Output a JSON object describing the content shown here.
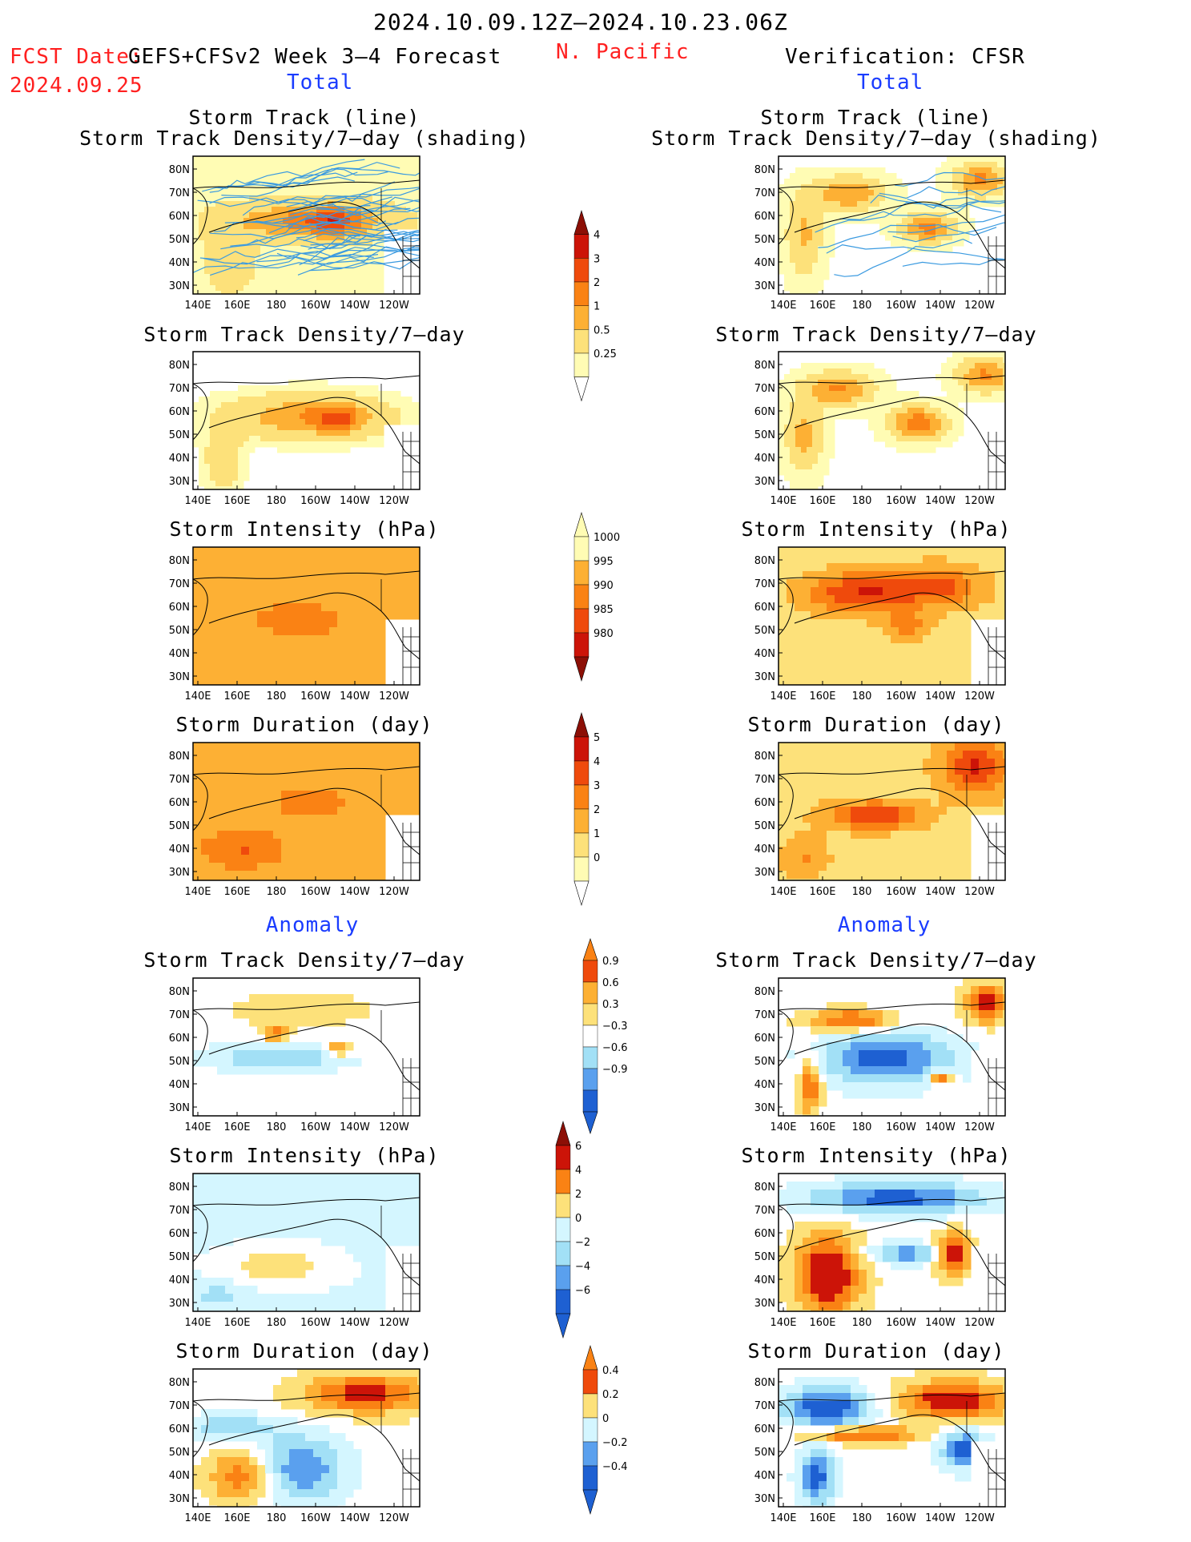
{
  "header": {
    "date_range": "2024.10.09.12Z–2024.10.23.06Z",
    "fcst_label": "FCST Date:",
    "fcst_model": "GEFS+CFSv2 Week 3–4 Forecast",
    "fcst_date": "2024.09.25",
    "region": "N. Pacific",
    "verification": "Verification: CFSR"
  },
  "sections": {
    "total": "Total",
    "anomaly": "Anomaly"
  },
  "panel_titles": {
    "track_line": "Storm Track (line)",
    "track_shading": "Storm Track Density/7–day (shading)",
    "density": "Storm Track Density/7–day",
    "intensity": "Storm Intensity (hPa)",
    "duration": "Storm Duration (day)"
  },
  "axes": {
    "lon_ticks": [
      "140E",
      "160E",
      "180",
      "160W",
      "140W",
      "120W"
    ],
    "lat_ticks": [
      "80N",
      "70N",
      "60N",
      "50N",
      "40N",
      "30N"
    ]
  },
  "colors": {
    "warm": [
      "#fffcb4",
      "#fde17a",
      "#fdb034",
      "#fa8214",
      "#ef4a0c",
      "#cc1408",
      "#8c0f06"
    ],
    "cool": [
      "#d4f6ff",
      "#a2e0f6",
      "#5aa0ee",
      "#1e60d2"
    ],
    "ocean_white": "#ffffff"
  },
  "chart_data": [
    {
      "type": "heatmap",
      "title": "Storm Track (line) / Storm Track Density/7-day (shading)",
      "panel": "forecast-total-track",
      "xlabel": "",
      "ylabel": ""
    },
    {
      "type": "heatmap",
      "title": "Storm Track Density/7-day",
      "panel": "forecast-total-density"
    },
    {
      "type": "heatmap",
      "title": "Storm Intensity (hPa)",
      "panel": "forecast-total-intensity"
    },
    {
      "type": "heatmap",
      "title": "Storm Duration (day)",
      "panel": "forecast-total-duration"
    },
    {
      "type": "heatmap",
      "title": "Storm Track Density/7-day",
      "panel": "forecast-anomaly-density"
    },
    {
      "type": "heatmap",
      "title": "Storm Intensity (hPa)",
      "panel": "forecast-anomaly-intensity"
    },
    {
      "type": "heatmap",
      "title": "Storm Duration (day)",
      "panel": "forecast-anomaly-duration"
    },
    {
      "type": "heatmap",
      "title": "Storm Track (line) / Storm Track Density/7-day (shading)",
      "panel": "verification-total-track"
    },
    {
      "type": "heatmap",
      "title": "Storm Track Density/7-day",
      "panel": "verification-total-density"
    },
    {
      "type": "heatmap",
      "title": "Storm Intensity (hPa)",
      "panel": "verification-total-intensity"
    },
    {
      "type": "heatmap",
      "title": "Storm Duration (day)",
      "panel": "verification-total-duration"
    },
    {
      "type": "heatmap",
      "title": "Storm Track Density/7-day",
      "panel": "verification-anomaly-density"
    },
    {
      "type": "heatmap",
      "title": "Storm Intensity (hPa)",
      "panel": "verification-anomaly-intensity"
    },
    {
      "type": "heatmap",
      "title": "Storm Duration (day)",
      "panel": "verification-anomaly-duration"
    }
  ],
  "colorbars": [
    {
      "name": "density-total",
      "labels": [
        "4",
        "3",
        "2",
        "1",
        "0.5",
        "0.25"
      ]
    },
    {
      "name": "intensity-total",
      "labels": [
        "1000",
        "995",
        "990",
        "985",
        "980"
      ]
    },
    {
      "name": "duration-total",
      "labels": [
        "5",
        "4",
        "3",
        "2",
        "1",
        "0"
      ]
    },
    {
      "name": "density-anomaly",
      "labels": [
        "0.9",
        "0.6",
        "0.3",
        "−0.3",
        "−0.6",
        "−0.9"
      ]
    },
    {
      "name": "intensity-anomaly",
      "labels": [
        "6",
        "4",
        "2",
        "0",
        "−2",
        "−4",
        "−6"
      ]
    },
    {
      "name": "duration-anomaly",
      "labels": [
        "0.4",
        "0.2",
        "0",
        "−0.2",
        "−0.4"
      ]
    }
  ]
}
